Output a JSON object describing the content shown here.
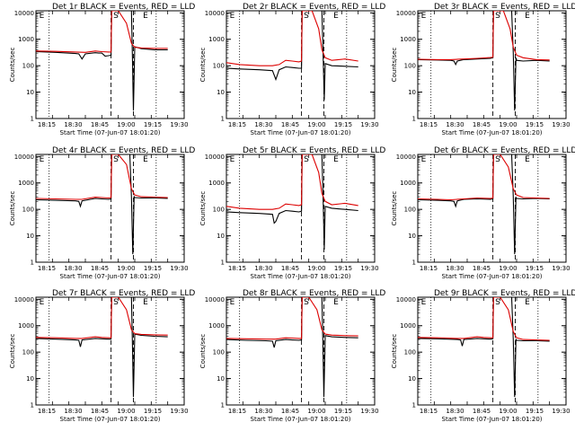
{
  "chart_data": [
    {
      "type": "line",
      "title": "Det 1r BLACK = Events, RED = LLD",
      "xlabel": "Start Time (07-Jun-07 18:01:20)",
      "ylabel": "Counts/sec",
      "xticks": [
        "18:15",
        "18:30",
        "18:45",
        "19:00",
        "19:15",
        "19:30"
      ],
      "yticks": [
        "1",
        "10",
        "100",
        "1000",
        "10000"
      ],
      "ylog": true,
      "ylim": [
        1,
        12000
      ],
      "xlim_min": [
        0,
        40
      ],
      "markers": [
        {
          "t": 1,
          "text": "E"
        },
        {
          "t": 23.5,
          "text": "S"
        },
        {
          "t": 32.5,
          "text": "E"
        }
      ],
      "series": [
        {
          "color": "#000000",
          "x": [
            0,
            6,
            12,
            13,
            14,
            15,
            18,
            19,
            20,
            21,
            22,
            22.8,
            23,
            29,
            29.3,
            29.6,
            30,
            32,
            36,
            40
          ],
          "y": [
            340,
            320,
            290,
            280,
            180,
            280,
            310,
            300,
            300,
            230,
            240,
            250,
            12000,
            12000,
            200,
            2,
            520,
            440,
            400,
            400
          ]
        },
        {
          "color": "#dd0000",
          "x": [
            0,
            6,
            12,
            15,
            18,
            20,
            22,
            22.8,
            23,
            25,
            27.5,
            29,
            30,
            32,
            36,
            40
          ],
          "y": [
            360,
            350,
            330,
            320,
            360,
            340,
            330,
            330,
            12000,
            12000,
            4000,
            700,
            500,
            470,
            450,
            450
          ]
        }
      ]
    },
    {
      "type": "line",
      "title": "Det 2r BLACK = Events, RED = LLD",
      "xlabel": "Start Time (07-Jun-07 18:01:20)",
      "ylabel": "Counts/sec",
      "xticks": [
        "18:15",
        "18:30",
        "18:45",
        "19:00",
        "19:15",
        "19:30"
      ],
      "yticks": [
        "1",
        "10",
        "100",
        "1000",
        "10000"
      ],
      "ylog": true,
      "ylim": [
        1,
        12000
      ],
      "xlim_min": [
        0,
        40
      ],
      "markers": [
        {
          "t": 1,
          "text": "E"
        },
        {
          "t": 23.5,
          "text": "S"
        },
        {
          "t": 32.5,
          "text": "E"
        }
      ],
      "series": [
        {
          "color": "#000000",
          "x": [
            0,
            4,
            10,
            14,
            15,
            16,
            18,
            20,
            22,
            22.8,
            23,
            29,
            29.4,
            29.7,
            30,
            32,
            36,
            40
          ],
          "y": [
            80,
            75,
            70,
            65,
            30,
            70,
            90,
            85,
            80,
            80,
            12000,
            12000,
            150,
            5,
            120,
            100,
            95,
            90
          ]
        },
        {
          "color": "#dd0000",
          "x": [
            0,
            4,
            10,
            14,
            16,
            18,
            20,
            22,
            22.8,
            23,
            26,
            28,
            29,
            30,
            32,
            36,
            40
          ],
          "y": [
            130,
            110,
            100,
            100,
            110,
            160,
            150,
            140,
            150,
            12000,
            12000,
            2500,
            400,
            200,
            160,
            180,
            150
          ]
        }
      ]
    },
    {
      "type": "line",
      "title": "Det 3r BLACK = Events, RED = LLD",
      "xlabel": "Start Time (07-Jun-07 18:01:20)",
      "ylabel": "Counts/sec",
      "xticks": [
        "18:15",
        "18:30",
        "18:45",
        "19:00",
        "19:15",
        "19:30"
      ],
      "yticks": [
        "1",
        "10",
        "100",
        "1000",
        "10000"
      ],
      "ylog": true,
      "ylim": [
        1,
        12000
      ],
      "xlim_min": [
        0,
        40
      ],
      "markers": [
        {
          "t": 1,
          "text": "E"
        },
        {
          "t": 23.5,
          "text": "S"
        },
        {
          "t": 32.5,
          "text": "E"
        }
      ],
      "series": [
        {
          "color": "#000000",
          "x": [
            0,
            6,
            10,
            11,
            11.5,
            12,
            14,
            18,
            22,
            22.8,
            23,
            28.5,
            29,
            29.4,
            29.8,
            30,
            32,
            36,
            40
          ],
          "y": [
            170,
            165,
            160,
            150,
            110,
            150,
            170,
            180,
            190,
            200,
            12000,
            12000,
            300,
            2,
            200,
            160,
            150,
            160,
            150
          ]
        },
        {
          "color": "#dd0000",
          "x": [
            0,
            6,
            10,
            14,
            18,
            22,
            22.8,
            23,
            26,
            28,
            29,
            30,
            32,
            36,
            40
          ],
          "y": [
            175,
            170,
            170,
            180,
            190,
            205,
            210,
            12000,
            12000,
            2500,
            500,
            250,
            200,
            170,
            165
          ]
        }
      ]
    },
    {
      "type": "line",
      "title": "Det 4r BLACK = Events, RED = LLD",
      "xlabel": "Start Time (07-Jun-07 18:01:20)",
      "ylabel": "Counts/sec",
      "xticks": [
        "18:15",
        "18:30",
        "18:45",
        "19:00",
        "19:15",
        "19:30"
      ],
      "yticks": [
        "1",
        "10",
        "100",
        "1000",
        "10000"
      ],
      "ylog": true,
      "ylim": [
        1,
        12000
      ],
      "xlim_min": [
        0,
        40
      ],
      "markers": [
        {
          "t": 1,
          "text": "E"
        },
        {
          "t": 23.5,
          "text": "S"
        },
        {
          "t": 32.5,
          "text": "E"
        }
      ],
      "series": [
        {
          "color": "#000000",
          "x": [
            0,
            6,
            12,
            13,
            13.5,
            14,
            18,
            20,
            22,
            22.8,
            23,
            28.5,
            29,
            29.4,
            29.8,
            30,
            32,
            36,
            40
          ],
          "y": [
            230,
            220,
            210,
            200,
            130,
            210,
            260,
            250,
            240,
            250,
            12000,
            12000,
            300,
            2,
            300,
            280,
            270,
            270,
            260
          ]
        },
        {
          "color": "#dd0000",
          "x": [
            0,
            6,
            12,
            14,
            18,
            20,
            22,
            22.8,
            23,
            25,
            27.5,
            29,
            30,
            32,
            36,
            40
          ],
          "y": [
            260,
            250,
            240,
            240,
            290,
            280,
            270,
            280,
            12000,
            12000,
            5000,
            600,
            350,
            300,
            290,
            280
          ]
        }
      ]
    },
    {
      "type": "line",
      "title": "Det 5r BLACK = Events, RED = LLD",
      "xlabel": "Start Time (07-Jun-07 18:01:20)",
      "ylabel": "Counts/sec",
      "xticks": [
        "18:15",
        "18:30",
        "18:45",
        "19:00",
        "19:15",
        "19:30"
      ],
      "yticks": [
        "1",
        "10",
        "100",
        "1000",
        "10000"
      ],
      "ylog": true,
      "ylim": [
        1,
        12000
      ],
      "xlim_min": [
        0,
        40
      ],
      "markers": [
        {
          "t": 1,
          "text": "E"
        },
        {
          "t": 23.5,
          "text": "S"
        },
        {
          "t": 32.5,
          "text": "E"
        }
      ],
      "series": [
        {
          "color": "#000000",
          "x": [
            0,
            4,
            10,
            14,
            14.5,
            15,
            16,
            18,
            20,
            22,
            22.8,
            23,
            29,
            29.4,
            29.7,
            30,
            32,
            36,
            40
          ],
          "y": [
            80,
            75,
            70,
            65,
            30,
            35,
            70,
            90,
            85,
            80,
            85,
            12000,
            12000,
            150,
            3,
            130,
            110,
            100,
            90
          ]
        },
        {
          "color": "#dd0000",
          "x": [
            0,
            4,
            10,
            14,
            16,
            18,
            20,
            22,
            22.8,
            23,
            26,
            28,
            29,
            30,
            32,
            36,
            40
          ],
          "y": [
            130,
            110,
            100,
            100,
            110,
            160,
            150,
            140,
            150,
            12000,
            12000,
            2500,
            400,
            200,
            150,
            170,
            140
          ]
        }
      ]
    },
    {
      "type": "line",
      "title": "Det 6r BLACK = Events, RED = LLD",
      "xlabel": "Start Time (07-Jun-07 18:01:20)",
      "ylabel": "Counts/sec",
      "xticks": [
        "18:15",
        "18:30",
        "18:45",
        "19:00",
        "19:15",
        "19:30"
      ],
      "yticks": [
        "1",
        "10",
        "100",
        "1000",
        "10000"
      ],
      "ylog": true,
      "ylim": [
        1,
        12000
      ],
      "xlim_min": [
        0,
        40
      ],
      "markers": [
        {
          "t": 1,
          "text": "E"
        },
        {
          "t": 23.5,
          "text": "S"
        },
        {
          "t": 32.5,
          "text": "E"
        }
      ],
      "series": [
        {
          "color": "#000000",
          "x": [
            0,
            6,
            10,
            11,
            11.5,
            12,
            14,
            18,
            22,
            22.8,
            23,
            28.5,
            29,
            29.4,
            29.8,
            30,
            32,
            36,
            40
          ],
          "y": [
            230,
            220,
            210,
            200,
            130,
            210,
            240,
            250,
            240,
            250,
            12000,
            12000,
            300,
            2,
            280,
            260,
            250,
            260,
            250
          ]
        },
        {
          "color": "#dd0000",
          "x": [
            0,
            6,
            10,
            14,
            18,
            22,
            22.8,
            23,
            25,
            27.5,
            29,
            30,
            32,
            36,
            40
          ],
          "y": [
            250,
            240,
            230,
            250,
            270,
            260,
            270,
            12000,
            12000,
            4000,
            600,
            350,
            280,
            270,
            260
          ]
        }
      ]
    },
    {
      "type": "line",
      "title": "Det 7r BLACK = Events, RED = LLD",
      "xlabel": "Start Time (07-Jun-07 18:01:20)",
      "ylabel": "Counts/sec",
      "xticks": [
        "18:15",
        "18:30",
        "18:45",
        "19:00",
        "19:15",
        "19:30"
      ],
      "yticks": [
        "1",
        "10",
        "100",
        "1000",
        "10000"
      ],
      "ylog": true,
      "ylim": [
        1,
        12000
      ],
      "xlim_min": [
        0,
        40
      ],
      "markers": [
        {
          "t": 1,
          "text": "E"
        },
        {
          "t": 23.5,
          "text": "S"
        },
        {
          "t": 32.5,
          "text": "E"
        }
      ],
      "series": [
        {
          "color": "#000000",
          "x": [
            0,
            6,
            12,
            13,
            13.5,
            14,
            18,
            20,
            22,
            22.8,
            23,
            29,
            29.3,
            29.6,
            30,
            32,
            36,
            40
          ],
          "y": [
            330,
            310,
            290,
            280,
            160,
            290,
            330,
            320,
            310,
            310,
            12000,
            12000,
            200,
            2,
            480,
            430,
            400,
            380
          ]
        },
        {
          "color": "#dd0000",
          "x": [
            0,
            6,
            12,
            14,
            18,
            20,
            22,
            22.8,
            23,
            25,
            27.5,
            29,
            30,
            32,
            36,
            40
          ],
          "y": [
            360,
            350,
            330,
            330,
            380,
            360,
            350,
            350,
            12000,
            12000,
            4000,
            700,
            500,
            470,
            450,
            440
          ]
        }
      ]
    },
    {
      "type": "line",
      "title": "Det 8r BLACK = Events, RED = LLD",
      "xlabel": "Start Time (07-Jun-07 18:01:20)",
      "ylabel": "Counts/sec",
      "xticks": [
        "18:15",
        "18:30",
        "18:45",
        "19:00",
        "19:15",
        "19:30"
      ],
      "yticks": [
        "1",
        "10",
        "100",
        "1000",
        "10000"
      ],
      "ylog": true,
      "ylim": [
        1,
        12000
      ],
      "xlim_min": [
        0,
        40
      ],
      "markers": [
        {
          "t": 1,
          "text": "E"
        },
        {
          "t": 23.5,
          "text": "S"
        },
        {
          "t": 32.5,
          "text": "E"
        }
      ],
      "series": [
        {
          "color": "#000000",
          "x": [
            0,
            6,
            12,
            14,
            14.5,
            15,
            18,
            20,
            22,
            22.8,
            23,
            29,
            29.3,
            29.6,
            30,
            32,
            36,
            40
          ],
          "y": [
            300,
            280,
            270,
            260,
            150,
            270,
            300,
            290,
            280,
            290,
            12000,
            12000,
            200,
            2,
            420,
            380,
            360,
            350
          ]
        },
        {
          "color": "#dd0000",
          "x": [
            0,
            6,
            12,
            15,
            18,
            20,
            22,
            22.8,
            23,
            25,
            27.5,
            29,
            30,
            32,
            36,
            40
          ],
          "y": [
            330,
            320,
            310,
            310,
            350,
            340,
            330,
            330,
            12000,
            12000,
            4000,
            700,
            480,
            440,
            420,
            410
          ]
        }
      ]
    },
    {
      "type": "line",
      "title": "Det 9r BLACK = Events, RED = LLD",
      "xlabel": "Start Time (07-Jun-07 18:01:20)",
      "ylabel": "Counts/sec",
      "xticks": [
        "18:15",
        "18:30",
        "18:45",
        "19:00",
        "19:15",
        "19:30"
      ],
      "yticks": [
        "1",
        "10",
        "100",
        "1000",
        "10000"
      ],
      "ylog": true,
      "ylim": [
        1,
        12000
      ],
      "xlim_min": [
        0,
        40
      ],
      "markers": [
        {
          "t": 1,
          "text": "E"
        },
        {
          "t": 23.5,
          "text": "S"
        },
        {
          "t": 32.5,
          "text": "E"
        }
      ],
      "series": [
        {
          "color": "#000000",
          "x": [
            0,
            6,
            12,
            13,
            13.5,
            14,
            18,
            20,
            22,
            22.8,
            23,
            28.5,
            29,
            29.4,
            29.8,
            30,
            32,
            36,
            40
          ],
          "y": [
            330,
            320,
            300,
            290,
            170,
            300,
            330,
            320,
            310,
            320,
            12000,
            12000,
            300,
            2,
            300,
            280,
            270,
            270,
            260
          ]
        },
        {
          "color": "#dd0000",
          "x": [
            0,
            6,
            12,
            14,
            18,
            20,
            22,
            22.8,
            23,
            25,
            27.5,
            29,
            30,
            32,
            36,
            40
          ],
          "y": [
            360,
            350,
            330,
            330,
            380,
            360,
            350,
            350,
            12000,
            12000,
            4000,
            600,
            350,
            300,
            290,
            280
          ]
        }
      ]
    }
  ]
}
